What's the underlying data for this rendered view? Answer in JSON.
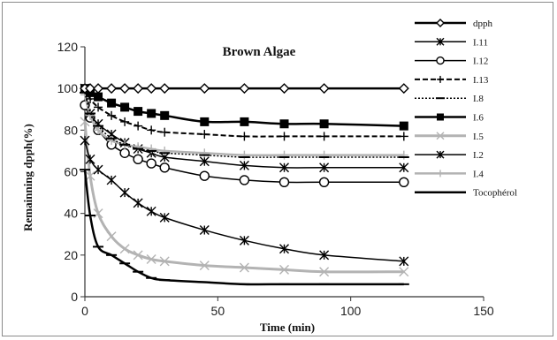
{
  "chart_data": {
    "type": "line",
    "title": "Brown Algae",
    "xlabel": "Time (min)",
    "ylabel": "Remainning dpph(%)",
    "xlim": [
      0,
      150
    ],
    "ylim": [
      0,
      120
    ],
    "xticks": [
      "0",
      "50",
      "100",
      "150"
    ],
    "yticks": [
      "0",
      "20",
      "40",
      "60",
      "80",
      "100",
      "120"
    ],
    "grid": false,
    "legend_position": "right",
    "x": [
      0,
      2,
      5,
      10,
      15,
      20,
      25,
      30,
      45,
      60,
      75,
      90,
      120
    ],
    "series": [
      {
        "name": "dpph",
        "color": "#000000",
        "dash": "solid",
        "width": 2.5,
        "marker": "diamond-open",
        "values": [
          100,
          100,
          100,
          100,
          100,
          100,
          100,
          100,
          100,
          100,
          100,
          100,
          100
        ]
      },
      {
        "name": "I.11",
        "color": "#000000",
        "dash": "solid",
        "width": 1.5,
        "marker": "asterisk",
        "values": [
          100,
          88,
          83,
          78,
          74,
          71,
          69,
          67,
          65,
          63,
          62,
          62,
          62
        ]
      },
      {
        "name": "I.12",
        "color": "#000000",
        "dash": "solid",
        "width": 1.5,
        "marker": "circle-open",
        "values": [
          92,
          86,
          80,
          73,
          69,
          66,
          64,
          62,
          58,
          56,
          55,
          55,
          55
        ]
      },
      {
        "name": "I.13",
        "color": "#000000",
        "dash": "dashed",
        "width": 2,
        "marker": "plus",
        "values": [
          100,
          95,
          91,
          87,
          84,
          82,
          80,
          79,
          78,
          77,
          77,
          77,
          77
        ]
      },
      {
        "name": "I.8",
        "color": "#000000",
        "dash": "dotted",
        "width": 1.5,
        "marker": "dash",
        "values": [
          98,
          88,
          82,
          76,
          73,
          71,
          70,
          69,
          68,
          67,
          67,
          67,
          67
        ]
      },
      {
        "name": "I.6",
        "color": "#000000",
        "dash": "solid",
        "width": 2.5,
        "marker": "square-filled",
        "values": [
          100,
          98,
          96,
          93,
          91,
          89,
          88,
          87,
          84,
          84,
          83,
          83,
          82
        ]
      },
      {
        "name": "I.5",
        "color": "#b3b3b3",
        "dash": "solid",
        "width": 3,
        "marker": "x",
        "values": [
          84,
          58,
          40,
          29,
          23,
          20,
          18,
          17,
          15,
          14,
          13,
          12,
          12
        ]
      },
      {
        "name": "I.2",
        "color": "#000000",
        "dash": "solid",
        "width": 1.5,
        "marker": "asterisk",
        "values": [
          75,
          66,
          61,
          56,
          50,
          45,
          41,
          38,
          32,
          27,
          23,
          20,
          17
        ]
      },
      {
        "name": "I.4",
        "color": "#b3b3b3",
        "dash": "solid",
        "width": 2.5,
        "marker": "plus",
        "values": [
          97,
          87,
          80,
          75,
          73,
          72,
          71,
          70,
          69,
          68,
          68,
          68,
          68
        ]
      },
      {
        "name": "Tocophérol",
        "color": "#000000",
        "dash": "solid",
        "width": 2.5,
        "marker": "dash",
        "values": [
          61,
          39,
          24,
          20,
          16,
          12,
          9,
          8,
          7,
          6,
          6,
          6,
          6
        ]
      }
    ]
  }
}
